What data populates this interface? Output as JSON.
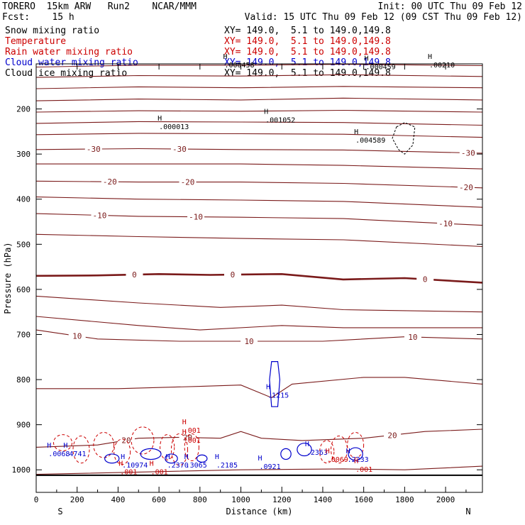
{
  "header": {
    "left_line1": "TORERO  15km ARW   Run2    NCAR/MMM",
    "left_line2": "Fcst:    15 h",
    "init": "Init: 00 UTC Thu 09 Feb 12",
    "valid": "Valid: 15 UTC Thu 09 Feb 12 (09 CST Thu 09 Feb 12)"
  },
  "legend": [
    {
      "label": "Snow mixing ratio",
      "xy": "XY= 149.0,  5.1 to 149.0,149.8",
      "color": "#000000"
    },
    {
      "label": "Temperature",
      "xy": "XY= 149.0,  5.1 to 149.0,149.8",
      "color": "#cc0000"
    },
    {
      "label": "Rain water mixing ratio",
      "xy": "XY= 149.0,  5.1 to 149.0,149.8",
      "color": "#cc0000"
    },
    {
      "label": "Cloud water mixing ratio",
      "xy": "XY= 149.0,  5.1 to 149.0,149.8",
      "color": "#0000cc"
    },
    {
      "label": "Cloud ice mixing ratio",
      "xy": "XY= 149.0,  5.1 to 149.0,149.8",
      "color": "#000000"
    }
  ],
  "chart_data": {
    "type": "cross-section contour",
    "xlabel": "Distance (km)",
    "ylabel": "Pressure (hPa)",
    "x_range": [
      0,
      2180
    ],
    "y_range": [
      100,
      1050
    ],
    "x_ticks": [
      0,
      200,
      400,
      600,
      800,
      1000,
      1200,
      1400,
      1600,
      1800,
      2000
    ],
    "y_ticks": [
      200,
      300,
      400,
      500,
      600,
      700,
      800,
      900,
      1000
    ],
    "end_labels": {
      "left": "S",
      "right": "N"
    },
    "surface_pressure": 1012,
    "colors": {
      "temperature": "#7a1a1a",
      "rain": "#cc0000",
      "cloud_water": "#0000cc",
      "ice": "#000000"
    },
    "temperature_contours": [
      {
        "value": -45,
        "points": [
          [
            0,
            107
          ],
          [
            500,
            103
          ],
          [
            1000,
            103
          ],
          [
            1500,
            101
          ],
          [
            2180,
            104
          ]
        ]
      },
      {
        "value": -45,
        "points": [
          [
            0,
            130
          ],
          [
            500,
            126
          ],
          [
            1000,
            127
          ],
          [
            1500,
            124
          ],
          [
            2180,
            128
          ]
        ]
      },
      {
        "value": -45,
        "points": [
          [
            0,
            155
          ],
          [
            500,
            151
          ],
          [
            1000,
            153
          ],
          [
            1500,
            150
          ],
          [
            2180,
            153
          ]
        ]
      },
      {
        "value": -40,
        "points": [
          [
            0,
            182
          ],
          [
            500,
            178
          ],
          [
            1000,
            180
          ],
          [
            1500,
            176
          ],
          [
            2180,
            180
          ]
        ]
      },
      {
        "value": -40,
        "points": [
          [
            0,
            207
          ],
          [
            500,
            204
          ],
          [
            1000,
            205
          ],
          [
            1500,
            203
          ],
          [
            2180,
            207
          ]
        ]
      },
      {
        "value": -35,
        "points": [
          [
            0,
            232
          ],
          [
            500,
            228
          ],
          [
            1000,
            229
          ],
          [
            1500,
            230
          ],
          [
            2180,
            236
          ]
        ]
      },
      {
        "value": -35,
        "points": [
          [
            0,
            257
          ],
          [
            500,
            254
          ],
          [
            1000,
            255
          ],
          [
            1500,
            256
          ],
          [
            2180,
            263
          ]
        ]
      },
      {
        "value": -30,
        "points": [
          [
            0,
            290
          ],
          [
            500,
            288
          ],
          [
            1000,
            290
          ],
          [
            1500,
            291
          ],
          [
            2180,
            298
          ]
        ],
        "label": "-30",
        "label_x": [
          280,
          700,
          2110
        ]
      },
      {
        "value": -25,
        "points": [
          [
            0,
            322
          ],
          [
            500,
            322
          ],
          [
            1000,
            322
          ],
          [
            1500,
            325
          ],
          [
            2180,
            333
          ]
        ]
      },
      {
        "value": -20,
        "points": [
          [
            0,
            360
          ],
          [
            500,
            362
          ],
          [
            1000,
            362
          ],
          [
            1500,
            365
          ],
          [
            2180,
            375
          ]
        ],
        "label": "-20",
        "label_x": [
          360,
          740,
          2100
        ]
      },
      {
        "value": -15,
        "points": [
          [
            0,
            395
          ],
          [
            500,
            400
          ],
          [
            1000,
            402
          ],
          [
            1500,
            405
          ],
          [
            2180,
            418
          ]
        ]
      },
      {
        "value": -10,
        "points": [
          [
            0,
            432
          ],
          [
            500,
            438
          ],
          [
            1000,
            440
          ],
          [
            1500,
            443
          ],
          [
            2180,
            458
          ]
        ],
        "label": "-10",
        "label_x": [
          310,
          780,
          2000
        ]
      },
      {
        "value": -5,
        "points": [
          [
            0,
            478
          ],
          [
            500,
            483
          ],
          [
            1000,
            487
          ],
          [
            1500,
            490
          ],
          [
            2180,
            505
          ]
        ]
      },
      {
        "value": 0,
        "bold": true,
        "points": [
          [
            0,
            570
          ],
          [
            300,
            569
          ],
          [
            600,
            566
          ],
          [
            850,
            568
          ],
          [
            1000,
            567
          ],
          [
            1200,
            566
          ],
          [
            1500,
            578
          ],
          [
            1800,
            575
          ],
          [
            2180,
            585
          ]
        ],
        "label": "0",
        "label_x": [
          480,
          960,
          1900
        ]
      },
      {
        "value": 5,
        "points": [
          [
            0,
            615
          ],
          [
            500,
            630
          ],
          [
            900,
            640
          ],
          [
            1200,
            635
          ],
          [
            1500,
            645
          ],
          [
            2180,
            650
          ]
        ]
      },
      {
        "value": 8,
        "points": [
          [
            0,
            660
          ],
          [
            500,
            680
          ],
          [
            800,
            690
          ],
          [
            1200,
            680
          ],
          [
            1500,
            685
          ],
          [
            2180,
            685
          ]
        ]
      },
      {
        "value": 10,
        "points": [
          [
            0,
            690
          ],
          [
            300,
            710
          ],
          [
            700,
            715
          ],
          [
            1000,
            715
          ],
          [
            1400,
            715
          ],
          [
            1800,
            705
          ],
          [
            2180,
            710
          ]
        ],
        "label": "10",
        "label_x": [
          200,
          1040,
          1840
        ]
      },
      {
        "value": 15,
        "points": [
          [
            0,
            820
          ],
          [
            400,
            820
          ],
          [
            800,
            815
          ],
          [
            1000,
            812
          ],
          [
            1150,
            840
          ],
          [
            1250,
            810
          ],
          [
            1600,
            795
          ],
          [
            1800,
            795
          ],
          [
            2180,
            810
          ]
        ]
      },
      {
        "value": 20,
        "points": [
          [
            0,
            950
          ],
          [
            300,
            945
          ],
          [
            500,
            930
          ],
          [
            700,
            928
          ],
          [
            900,
            930
          ],
          [
            1000,
            915
          ],
          [
            1100,
            930
          ],
          [
            1300,
            935
          ],
          [
            1600,
            930
          ],
          [
            1900,
            915
          ],
          [
            2180,
            910
          ]
        ],
        "label": "20",
        "label_x": [
          440,
          740,
          1740
        ]
      },
      {
        "value": 25,
        "points": [
          [
            0,
            1010
          ],
          [
            500,
            1005
          ],
          [
            1000,
            1000
          ],
          [
            1500,
            998
          ],
          [
            1800,
            1000
          ],
          [
            2180,
            992
          ]
        ]
      }
    ],
    "snow_labels": [
      {
        "x": 920,
        "p": 103,
        "text": ".000458"
      },
      {
        "x": 1610,
        "p": 107,
        "text": ".000459"
      },
      {
        "x": 1920,
        "p": 103,
        "text": ".00210"
      },
      {
        "x": 600,
        "p": 240,
        "text": ".000013"
      },
      {
        "x": 1120,
        "p": 225,
        "text": ".001052"
      },
      {
        "x": 1560,
        "p": 270,
        "text": ".004589"
      }
    ],
    "cloud_water_labels": [
      {
        "x": 60,
        "p": 965,
        "text": ".0068"
      },
      {
        "x": 140,
        "p": 965,
        "text": ".4741"
      },
      {
        "x": 420,
        "p": 990,
        "text": ".10974"
      },
      {
        "x": 640,
        "p": 990,
        "text": ".2370"
      },
      {
        "x": 730,
        "p": 990,
        "text": ".3065"
      },
      {
        "x": 880,
        "p": 990,
        "text": ".2185"
      },
      {
        "x": 1090,
        "p": 993,
        "text": ".0921"
      },
      {
        "x": 1130,
        "p": 835,
        "text": ".1215"
      },
      {
        "x": 1320,
        "p": 962,
        "text": ".2363"
      },
      {
        "x": 1520,
        "p": 978,
        "text": ".2233"
      }
    ],
    "rain_labels": [
      {
        "x": 720,
        "p": 913,
        "text": ".001"
      },
      {
        "x": 720,
        "p": 935,
        "text": ".001"
      },
      {
        "x": 410,
        "p": 1005,
        "text": ".001"
      },
      {
        "x": 560,
        "p": 1005,
        "text": ".001"
      },
      {
        "x": 1420,
        "p": 978,
        "text": ".0069"
      },
      {
        "x": 1560,
        "p": 1000,
        "text": ".001"
      }
    ]
  }
}
